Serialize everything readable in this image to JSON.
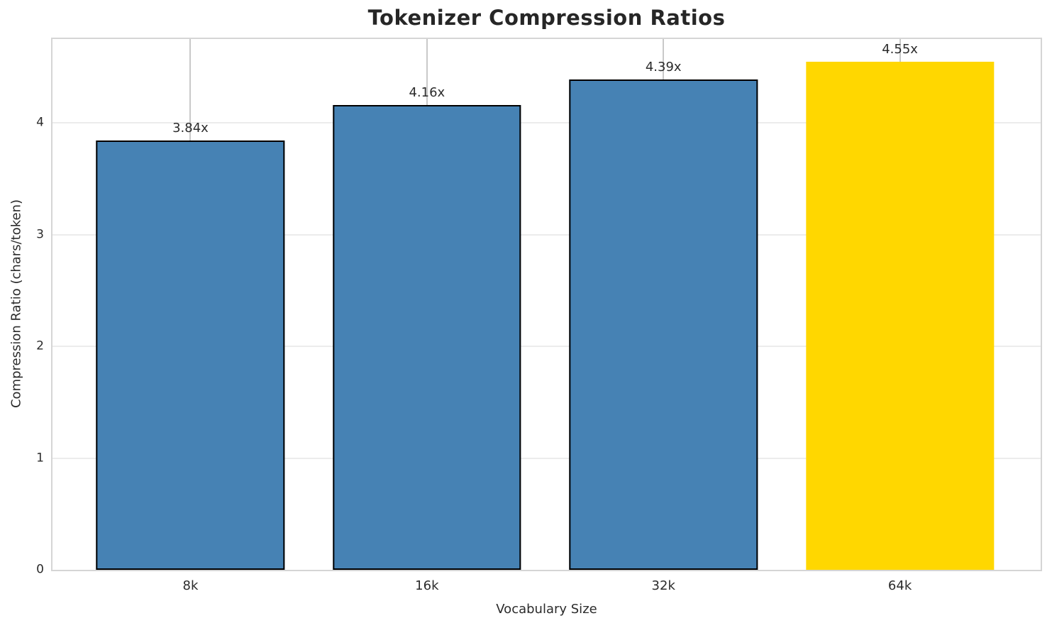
{
  "chart_data": {
    "type": "bar",
    "title": "Tokenizer Compression Ratios",
    "xlabel": "Vocabulary Size",
    "ylabel": "Compression Ratio (chars/token)",
    "categories": [
      "8k",
      "16k",
      "32k",
      "64k"
    ],
    "values": [
      3.84,
      4.16,
      4.39,
      4.55
    ],
    "bar_labels": [
      "3.84x",
      "4.16x",
      "4.39x",
      "4.55x"
    ],
    "bar_colors": [
      "#4682b4",
      "#4682b4",
      "#4682b4",
      "#ffd700"
    ],
    "bar_edge_colors": [
      "#000000",
      "#000000",
      "#000000",
      "none"
    ],
    "ytick_labels": [
      "0",
      "1",
      "2",
      "3",
      "4"
    ],
    "ytick_values": [
      0,
      1,
      2,
      3,
      4
    ],
    "ylim": [
      0,
      4.75
    ],
    "grid": true,
    "legend_position": "none",
    "highlighted_category": "64k"
  },
  "colors": {
    "bar_blue": "#4682b4",
    "bar_gold": "#ffd700",
    "bar_edge": "#000000",
    "spine": "#d5d5d5",
    "grid_horizontal": "#ececec",
    "grid_vertical": "#c9c9c9",
    "text": "#2b2b2b",
    "background": "#ffffff"
  }
}
